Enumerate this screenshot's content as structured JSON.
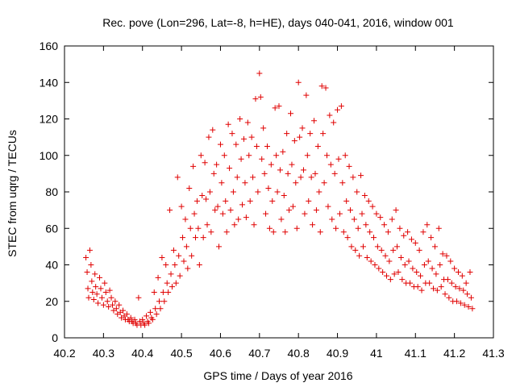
{
  "chart_data": {
    "type": "scatter",
    "title": "Rec. pove (Lon=296, Lat=-8, h=HE), days 040-041, 2016, window 001",
    "xlabel": "GPS time / Days of year 2016",
    "ylabel": "STEC from uqrg / TECUs",
    "xlim": [
      40.2,
      41.3
    ],
    "ylim": [
      0,
      160
    ],
    "xticks": [
      "40.2",
      "40.3",
      "40.4",
      "40.5",
      "40.6",
      "40.7",
      "40.8",
      "40.9",
      "41",
      "41.1",
      "41.2",
      "41.3"
    ],
    "yticks": [
      "0",
      "20",
      "40",
      "60",
      "80",
      "100",
      "120",
      "140",
      "160"
    ],
    "grid": false,
    "legend": "none",
    "marker": "+",
    "color": "#e00000",
    "series": [
      {
        "points": [
          [
            40.255,
            44
          ],
          [
            40.258,
            36
          ],
          [
            40.26,
            27
          ],
          [
            40.262,
            22
          ],
          [
            40.265,
            48
          ],
          [
            40.268,
            40
          ],
          [
            40.27,
            31
          ],
          [
            40.272,
            25
          ],
          [
            40.275,
            21
          ],
          [
            40.278,
            35
          ],
          [
            40.28,
            28
          ],
          [
            40.283,
            24
          ],
          [
            40.286,
            19
          ],
          [
            40.29,
            33
          ],
          [
            40.293,
            27
          ],
          [
            40.296,
            22
          ],
          [
            40.3,
            18
          ],
          [
            40.303,
            30
          ],
          [
            40.306,
            25
          ],
          [
            40.31,
            20
          ],
          [
            40.313,
            17
          ],
          [
            40.316,
            26
          ],
          [
            40.32,
            22
          ],
          [
            40.323,
            18
          ],
          [
            40.326,
            15
          ],
          [
            40.33,
            20
          ],
          [
            40.333,
            16
          ],
          [
            40.336,
            13
          ],
          [
            40.34,
            18
          ],
          [
            40.343,
            14
          ],
          [
            40.346,
            11
          ],
          [
            40.35,
            15
          ],
          [
            40.353,
            12
          ],
          [
            40.356,
            10
          ],
          [
            40.36,
            13
          ],
          [
            40.363,
            10
          ],
          [
            40.366,
            9
          ],
          [
            40.37,
            11
          ],
          [
            40.373,
            9
          ],
          [
            40.376,
            8
          ],
          [
            40.38,
            10
          ],
          [
            40.383,
            8
          ],
          [
            40.386,
            7
          ],
          [
            40.39,
            22
          ],
          [
            40.393,
            9
          ],
          [
            40.396,
            7
          ],
          [
            40.4,
            10
          ],
          [
            40.403,
            8
          ],
          [
            40.406,
            7
          ],
          [
            40.41,
            12
          ],
          [
            40.413,
            9
          ],
          [
            40.416,
            8
          ],
          [
            40.42,
            14
          ],
          [
            40.423,
            11
          ],
          [
            40.426,
            10
          ],
          [
            40.43,
            25
          ],
          [
            40.433,
            16
          ],
          [
            40.436,
            13
          ],
          [
            40.44,
            33
          ],
          [
            40.443,
            20
          ],
          [
            40.446,
            16
          ],
          [
            40.45,
            44
          ],
          [
            40.453,
            25
          ],
          [
            40.456,
            20
          ],
          [
            40.46,
            40
          ],
          [
            40.463,
            30
          ],
          [
            40.466,
            25
          ],
          [
            40.47,
            70
          ],
          [
            40.473,
            35
          ],
          [
            40.476,
            28
          ],
          [
            40.48,
            48
          ],
          [
            40.483,
            40
          ],
          [
            40.486,
            30
          ],
          [
            40.49,
            88
          ],
          [
            40.493,
            45
          ],
          [
            40.496,
            34
          ],
          [
            40.5,
            72
          ],
          [
            40.503,
            55
          ],
          [
            40.506,
            42
          ],
          [
            40.51,
            65
          ],
          [
            40.513,
            50
          ],
          [
            40.516,
            38
          ],
          [
            40.52,
            82
          ],
          [
            40.523,
            60
          ],
          [
            40.526,
            45
          ],
          [
            40.53,
            94
          ],
          [
            40.533,
            68
          ],
          [
            40.536,
            55
          ],
          [
            40.54,
            75
          ],
          [
            40.543,
            60
          ],
          [
            40.546,
            40
          ],
          [
            40.55,
            100
          ],
          [
            40.553,
            78
          ],
          [
            40.556,
            55
          ],
          [
            40.56,
            96
          ],
          [
            40.563,
            76
          ],
          [
            40.566,
            62
          ],
          [
            40.57,
            110
          ],
          [
            40.573,
            80
          ],
          [
            40.576,
            58
          ],
          [
            40.58,
            114
          ],
          [
            40.583,
            90
          ],
          [
            40.586,
            70
          ],
          [
            40.59,
            95
          ],
          [
            40.593,
            72
          ],
          [
            40.596,
            50
          ],
          [
            40.6,
            106
          ],
          [
            40.603,
            85
          ],
          [
            40.606,
            68
          ],
          [
            40.61,
            100
          ],
          [
            40.613,
            75
          ],
          [
            40.616,
            58
          ],
          [
            40.62,
            117
          ],
          [
            40.623,
            93
          ],
          [
            40.626,
            70
          ],
          [
            40.63,
            112
          ],
          [
            40.633,
            80
          ],
          [
            40.636,
            62
          ],
          [
            40.64,
            106
          ],
          [
            40.643,
            88
          ],
          [
            40.646,
            65
          ],
          [
            40.65,
            120
          ],
          [
            40.653,
            98
          ],
          [
            40.656,
            73
          ],
          [
            40.66,
            109
          ],
          [
            40.663,
            85
          ],
          [
            40.666,
            66
          ],
          [
            40.67,
            118
          ],
          [
            40.673,
            100
          ],
          [
            40.676,
            75
          ],
          [
            40.68,
            110
          ],
          [
            40.683,
            88
          ],
          [
            40.686,
            62
          ],
          [
            40.69,
            131
          ],
          [
            40.693,
            105
          ],
          [
            40.696,
            80
          ],
          [
            40.7,
            145
          ],
          [
            40.703,
            132
          ],
          [
            40.706,
            98
          ],
          [
            40.71,
            115
          ],
          [
            40.713,
            90
          ],
          [
            40.716,
            68
          ],
          [
            40.72,
            105
          ],
          [
            40.723,
            82
          ],
          [
            40.726,
            60
          ],
          [
            40.73,
            95
          ],
          [
            40.733,
            75
          ],
          [
            40.736,
            58
          ],
          [
            40.74,
            126
          ],
          [
            40.743,
            100
          ],
          [
            40.746,
            80
          ],
          [
            40.75,
            127
          ],
          [
            40.753,
            92
          ],
          [
            40.756,
            65
          ],
          [
            40.76,
            102
          ],
          [
            40.763,
            78
          ],
          [
            40.766,
            58
          ],
          [
            40.77,
            112
          ],
          [
            40.773,
            90
          ],
          [
            40.776,
            70
          ],
          [
            40.78,
            123
          ],
          [
            40.783,
            95
          ],
          [
            40.786,
            72
          ],
          [
            40.79,
            108
          ],
          [
            40.793,
            85
          ],
          [
            40.796,
            60
          ],
          [
            40.8,
            140
          ],
          [
            40.803,
            110
          ],
          [
            40.806,
            88
          ],
          [
            40.81,
            115
          ],
          [
            40.813,
            92
          ],
          [
            40.816,
            68
          ],
          [
            40.82,
            133
          ],
          [
            40.823,
            100
          ],
          [
            40.826,
            75
          ],
          [
            40.83,
            112
          ],
          [
            40.833,
            88
          ],
          [
            40.836,
            62
          ],
          [
            40.84,
            119
          ],
          [
            40.843,
            90
          ],
          [
            40.846,
            70
          ],
          [
            40.85,
            105
          ],
          [
            40.853,
            80
          ],
          [
            40.856,
            58
          ],
          [
            40.86,
            138
          ],
          [
            40.863,
            112
          ],
          [
            40.866,
            85
          ],
          [
            40.87,
            137
          ],
          [
            40.873,
            100
          ],
          [
            40.876,
            72
          ],
          [
            40.88,
            122
          ],
          [
            40.883,
            95
          ],
          [
            40.886,
            65
          ],
          [
            40.89,
            118
          ],
          [
            40.893,
            90
          ],
          [
            40.896,
            60
          ],
          [
            40.9,
            125
          ],
          [
            40.903,
            98
          ],
          [
            40.906,
            68
          ],
          [
            40.91,
            127
          ],
          [
            40.913,
            85
          ],
          [
            40.916,
            58
          ],
          [
            40.92,
            100
          ],
          [
            40.923,
            75
          ],
          [
            40.926,
            55
          ],
          [
            40.93,
            94
          ],
          [
            40.933,
            70
          ],
          [
            40.936,
            50
          ],
          [
            40.94,
            88
          ],
          [
            40.943,
            65
          ],
          [
            40.946,
            48
          ],
          [
            40.95,
            80
          ],
          [
            40.953,
            60
          ],
          [
            40.956,
            45
          ],
          [
            40.96,
            89
          ],
          [
            40.963,
            68
          ],
          [
            40.966,
            50
          ],
          [
            40.97,
            78
          ],
          [
            40.973,
            62
          ],
          [
            40.976,
            44
          ],
          [
            40.98,
            75
          ],
          [
            40.983,
            58
          ],
          [
            40.986,
            42
          ],
          [
            40.99,
            72
          ],
          [
            40.993,
            55
          ],
          [
            40.996,
            40
          ],
          [
            41.0,
            68
          ],
          [
            41.003,
            50
          ],
          [
            41.006,
            38
          ],
          [
            41.01,
            66
          ],
          [
            41.013,
            48
          ],
          [
            41.016,
            36
          ],
          [
            41.02,
            62
          ],
          [
            41.023,
            45
          ],
          [
            41.026,
            34
          ],
          [
            41.03,
            58
          ],
          [
            41.033,
            42
          ],
          [
            41.036,
            32
          ],
          [
            41.04,
            65
          ],
          [
            41.043,
            48
          ],
          [
            41.046,
            35
          ],
          [
            41.05,
            70
          ],
          [
            41.053,
            50
          ],
          [
            41.056,
            36
          ],
          [
            41.06,
            60
          ],
          [
            41.063,
            44
          ],
          [
            41.066,
            32
          ],
          [
            41.07,
            56
          ],
          [
            41.073,
            40
          ],
          [
            41.076,
            30
          ],
          [
            41.08,
            58
          ],
          [
            41.083,
            42
          ],
          [
            41.086,
            30
          ],
          [
            41.09,
            54
          ],
          [
            41.093,
            38
          ],
          [
            41.096,
            28
          ],
          [
            41.1,
            52
          ],
          [
            41.103,
            36
          ],
          [
            41.106,
            28
          ],
          [
            41.11,
            48
          ],
          [
            41.113,
            34
          ],
          [
            41.116,
            26
          ],
          [
            41.12,
            58
          ],
          [
            41.123,
            40
          ],
          [
            41.126,
            30
          ],
          [
            41.13,
            62
          ],
          [
            41.133,
            42
          ],
          [
            41.136,
            30
          ],
          [
            41.14,
            55
          ],
          [
            41.143,
            38
          ],
          [
            41.146,
            27
          ],
          [
            41.15,
            50
          ],
          [
            41.153,
            35
          ],
          [
            41.156,
            26
          ],
          [
            41.16,
            60
          ],
          [
            41.163,
            40
          ],
          [
            41.166,
            28
          ],
          [
            41.17,
            46
          ],
          [
            41.173,
            32
          ],
          [
            41.176,
            24
          ],
          [
            41.18,
            45
          ],
          [
            41.183,
            32
          ],
          [
            41.186,
            22
          ],
          [
            41.19,
            42
          ],
          [
            41.193,
            30
          ],
          [
            41.196,
            20
          ],
          [
            41.2,
            38
          ],
          [
            41.203,
            28
          ],
          [
            41.206,
            20
          ],
          [
            41.21,
            36
          ],
          [
            41.213,
            27
          ],
          [
            41.216,
            19
          ],
          [
            41.22,
            34
          ],
          [
            41.223,
            26
          ],
          [
            41.226,
            18
          ],
          [
            41.23,
            30
          ],
          [
            41.233,
            24
          ],
          [
            41.236,
            17
          ],
          [
            41.24,
            36
          ],
          [
            41.243,
            22
          ],
          [
            41.246,
            16
          ]
        ]
      }
    ]
  }
}
